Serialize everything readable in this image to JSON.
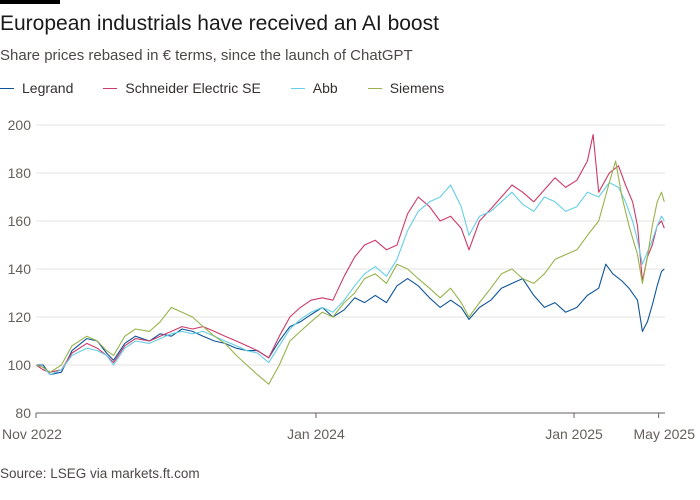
{
  "header": {
    "title": "European industrials have received an AI boost",
    "subtitle": "Share prices rebased in € terms, since the launch of ChatGPT"
  },
  "footer": {
    "source": "Source: LSEG via markets.ft.com"
  },
  "chart_data": {
    "type": "line",
    "title": "European industrials have received an AI boost",
    "subtitle": "Share prices rebased in € terms, since the launch of ChatGPT",
    "xlabel": "",
    "ylabel": "",
    "ylim": [
      80,
      200
    ],
    "yticks": [
      80,
      100,
      120,
      140,
      160,
      180,
      200
    ],
    "xlim": [
      "2022-11-30",
      "2025-05-10"
    ],
    "xticks": [
      {
        "date": "2022-11-30",
        "label": "Nov 2022"
      },
      {
        "date": "2024-01-01",
        "label": "Jan 2024"
      },
      {
        "date": "2025-01-01",
        "label": "Jan 2025"
      },
      {
        "date": "2025-05-01",
        "label": "May 2025"
      }
    ],
    "grid": true,
    "legend": "top-left",
    "series": [
      {
        "name": "Legrand",
        "color": "#0f5499",
        "points": [
          [
            "2022-11-30",
            100
          ],
          [
            "2022-12-10",
            100
          ],
          [
            "2022-12-20",
            96
          ],
          [
            "2023-01-05",
            97
          ],
          [
            "2023-01-20",
            106
          ],
          [
            "2023-02-10",
            111
          ],
          [
            "2023-02-25",
            110
          ],
          [
            "2023-03-10",
            105
          ],
          [
            "2023-03-20",
            102
          ],
          [
            "2023-04-05",
            109
          ],
          [
            "2023-04-20",
            112
          ],
          [
            "2023-05-10",
            110
          ],
          [
            "2023-05-25",
            113
          ],
          [
            "2023-06-10",
            112
          ],
          [
            "2023-06-25",
            115
          ],
          [
            "2023-07-10",
            114
          ],
          [
            "2023-07-25",
            112
          ],
          [
            "2023-08-10",
            110
          ],
          [
            "2023-08-25",
            109
          ],
          [
            "2023-09-10",
            107
          ],
          [
            "2023-09-25",
            106
          ],
          [
            "2023-10-10",
            106
          ],
          [
            "2023-10-26",
            103
          ],
          [
            "2023-11-10",
            110
          ],
          [
            "2023-11-25",
            116
          ],
          [
            "2023-12-10",
            118
          ],
          [
            "2023-12-25",
            121
          ],
          [
            "2024-01-10",
            124
          ],
          [
            "2024-01-25",
            120
          ],
          [
            "2024-02-10",
            123
          ],
          [
            "2024-02-25",
            128
          ],
          [
            "2024-03-10",
            126
          ],
          [
            "2024-03-25",
            129
          ],
          [
            "2024-04-10",
            126
          ],
          [
            "2024-04-25",
            133
          ],
          [
            "2024-05-10",
            136
          ],
          [
            "2024-05-25",
            133
          ],
          [
            "2024-06-10",
            128
          ],
          [
            "2024-06-25",
            124
          ],
          [
            "2024-07-10",
            127
          ],
          [
            "2024-07-25",
            124
          ],
          [
            "2024-08-05",
            119
          ],
          [
            "2024-08-20",
            124
          ],
          [
            "2024-09-05",
            127
          ],
          [
            "2024-09-20",
            132
          ],
          [
            "2024-10-05",
            134
          ],
          [
            "2024-10-20",
            136
          ],
          [
            "2024-11-05",
            129
          ],
          [
            "2024-11-20",
            124
          ],
          [
            "2024-12-05",
            126
          ],
          [
            "2024-12-20",
            122
          ],
          [
            "2025-01-05",
            124
          ],
          [
            "2025-01-20",
            129
          ],
          [
            "2025-02-05",
            132
          ],
          [
            "2025-02-15",
            142
          ],
          [
            "2025-02-25",
            138
          ],
          [
            "2025-03-10",
            135
          ],
          [
            "2025-03-20",
            132
          ],
          [
            "2025-04-01",
            127
          ],
          [
            "2025-04-08",
            114
          ],
          [
            "2025-04-15",
            118
          ],
          [
            "2025-04-22",
            125
          ],
          [
            "2025-04-29",
            133
          ],
          [
            "2025-05-05",
            139
          ],
          [
            "2025-05-09",
            140
          ]
        ]
      },
      {
        "name": "Schneider Electric SE",
        "color": "#cc3a68",
        "points": [
          [
            "2022-11-30",
            100
          ],
          [
            "2022-12-10",
            98
          ],
          [
            "2022-12-20",
            97
          ],
          [
            "2023-01-05",
            98
          ],
          [
            "2023-01-20",
            105
          ],
          [
            "2023-02-10",
            109
          ],
          [
            "2023-02-25",
            107
          ],
          [
            "2023-03-10",
            104
          ],
          [
            "2023-03-20",
            101
          ],
          [
            "2023-04-05",
            108
          ],
          [
            "2023-04-20",
            111
          ],
          [
            "2023-05-10",
            110
          ],
          [
            "2023-05-25",
            112
          ],
          [
            "2023-06-10",
            114
          ],
          [
            "2023-06-25",
            116
          ],
          [
            "2023-07-10",
            115
          ],
          [
            "2023-07-25",
            116
          ],
          [
            "2023-08-10",
            114
          ],
          [
            "2023-08-25",
            112
          ],
          [
            "2023-09-10",
            110
          ],
          [
            "2023-09-25",
            108
          ],
          [
            "2023-10-10",
            106
          ],
          [
            "2023-10-26",
            103
          ],
          [
            "2023-11-10",
            112
          ],
          [
            "2023-11-25",
            120
          ],
          [
            "2023-12-10",
            124
          ],
          [
            "2023-12-25",
            127
          ],
          [
            "2024-01-10",
            128
          ],
          [
            "2024-01-25",
            127
          ],
          [
            "2024-02-10",
            137
          ],
          [
            "2024-02-25",
            145
          ],
          [
            "2024-03-10",
            150
          ],
          [
            "2024-03-25",
            152
          ],
          [
            "2024-04-10",
            148
          ],
          [
            "2024-04-25",
            150
          ],
          [
            "2024-05-10",
            163
          ],
          [
            "2024-05-25",
            170
          ],
          [
            "2024-06-10",
            166
          ],
          [
            "2024-06-25",
            160
          ],
          [
            "2024-07-10",
            162
          ],
          [
            "2024-07-25",
            157
          ],
          [
            "2024-08-05",
            148
          ],
          [
            "2024-08-20",
            160
          ],
          [
            "2024-09-05",
            165
          ],
          [
            "2024-09-20",
            170
          ],
          [
            "2024-10-05",
            175
          ],
          [
            "2024-10-20",
            172
          ],
          [
            "2024-11-05",
            168
          ],
          [
            "2024-11-20",
            173
          ],
          [
            "2024-12-05",
            178
          ],
          [
            "2024-12-20",
            174
          ],
          [
            "2025-01-05",
            177
          ],
          [
            "2025-01-20",
            185
          ],
          [
            "2025-01-28",
            196
          ],
          [
            "2025-02-05",
            172
          ],
          [
            "2025-02-20",
            180
          ],
          [
            "2025-03-05",
            183
          ],
          [
            "2025-03-15",
            175
          ],
          [
            "2025-03-25",
            168
          ],
          [
            "2025-04-01",
            158
          ],
          [
            "2025-04-08",
            135
          ],
          [
            "2025-04-15",
            145
          ],
          [
            "2025-04-22",
            150
          ],
          [
            "2025-04-29",
            158
          ],
          [
            "2025-05-05",
            160
          ],
          [
            "2025-05-09",
            157
          ]
        ]
      },
      {
        "name": "Abb",
        "color": "#66cfe6",
        "points": [
          [
            "2022-11-30",
            100
          ],
          [
            "2022-12-10",
            99
          ],
          [
            "2022-12-20",
            96
          ],
          [
            "2023-01-05",
            98
          ],
          [
            "2023-01-20",
            104
          ],
          [
            "2023-02-10",
            107
          ],
          [
            "2023-02-25",
            106
          ],
          [
            "2023-03-10",
            104
          ],
          [
            "2023-03-20",
            100
          ],
          [
            "2023-04-05",
            107
          ],
          [
            "2023-04-20",
            110
          ],
          [
            "2023-05-10",
            109
          ],
          [
            "2023-05-25",
            111
          ],
          [
            "2023-06-10",
            113
          ],
          [
            "2023-06-25",
            114
          ],
          [
            "2023-07-10",
            113
          ],
          [
            "2023-07-25",
            114
          ],
          [
            "2023-08-10",
            112
          ],
          [
            "2023-08-25",
            110
          ],
          [
            "2023-09-10",
            108
          ],
          [
            "2023-09-25",
            106
          ],
          [
            "2023-10-10",
            105
          ],
          [
            "2023-10-26",
            101
          ],
          [
            "2023-11-10",
            108
          ],
          [
            "2023-11-25",
            115
          ],
          [
            "2023-12-10",
            119
          ],
          [
            "2023-12-25",
            122
          ],
          [
            "2024-01-10",
            124
          ],
          [
            "2024-01-25",
            122
          ],
          [
            "2024-02-10",
            127
          ],
          [
            "2024-02-25",
            133
          ],
          [
            "2024-03-10",
            138
          ],
          [
            "2024-03-25",
            141
          ],
          [
            "2024-04-10",
            137
          ],
          [
            "2024-04-25",
            144
          ],
          [
            "2024-05-10",
            156
          ],
          [
            "2024-05-25",
            164
          ],
          [
            "2024-06-10",
            168
          ],
          [
            "2024-06-25",
            170
          ],
          [
            "2024-07-10",
            175
          ],
          [
            "2024-07-25",
            166
          ],
          [
            "2024-08-05",
            154
          ],
          [
            "2024-08-20",
            162
          ],
          [
            "2024-09-05",
            164
          ],
          [
            "2024-09-20",
            168
          ],
          [
            "2024-10-05",
            172
          ],
          [
            "2024-10-20",
            167
          ],
          [
            "2024-11-05",
            164
          ],
          [
            "2024-11-20",
            170
          ],
          [
            "2024-12-05",
            168
          ],
          [
            "2024-12-20",
            164
          ],
          [
            "2025-01-05",
            166
          ],
          [
            "2025-01-20",
            172
          ],
          [
            "2025-02-05",
            170
          ],
          [
            "2025-02-20",
            176
          ],
          [
            "2025-03-05",
            174
          ],
          [
            "2025-03-15",
            168
          ],
          [
            "2025-03-25",
            160
          ],
          [
            "2025-04-01",
            152
          ],
          [
            "2025-04-08",
            142
          ],
          [
            "2025-04-15",
            147
          ],
          [
            "2025-04-22",
            152
          ],
          [
            "2025-04-29",
            158
          ],
          [
            "2025-05-05",
            162
          ],
          [
            "2025-05-09",
            160
          ]
        ]
      },
      {
        "name": "Siemens",
        "color": "#96b34c",
        "points": [
          [
            "2022-11-30",
            100
          ],
          [
            "2022-12-10",
            99
          ],
          [
            "2022-12-20",
            97
          ],
          [
            "2023-01-05",
            100
          ],
          [
            "2023-01-20",
            108
          ],
          [
            "2023-02-10",
            112
          ],
          [
            "2023-02-25",
            110
          ],
          [
            "2023-03-10",
            106
          ],
          [
            "2023-03-20",
            104
          ],
          [
            "2023-04-05",
            112
          ],
          [
            "2023-04-20",
            115
          ],
          [
            "2023-05-10",
            114
          ],
          [
            "2023-05-25",
            118
          ],
          [
            "2023-06-10",
            124
          ],
          [
            "2023-06-25",
            122
          ],
          [
            "2023-07-10",
            120
          ],
          [
            "2023-07-25",
            116
          ],
          [
            "2023-08-10",
            112
          ],
          [
            "2023-08-25",
            109
          ],
          [
            "2023-09-10",
            104
          ],
          [
            "2023-09-25",
            100
          ],
          [
            "2023-10-10",
            96
          ],
          [
            "2023-10-26",
            92
          ],
          [
            "2023-11-10",
            100
          ],
          [
            "2023-11-25",
            110
          ],
          [
            "2023-12-10",
            114
          ],
          [
            "2023-12-25",
            118
          ],
          [
            "2024-01-10",
            122
          ],
          [
            "2024-01-25",
            120
          ],
          [
            "2024-02-10",
            126
          ],
          [
            "2024-02-25",
            130
          ],
          [
            "2024-03-10",
            136
          ],
          [
            "2024-03-25",
            138
          ],
          [
            "2024-04-10",
            134
          ],
          [
            "2024-04-25",
            142
          ],
          [
            "2024-05-10",
            140
          ],
          [
            "2024-05-25",
            136
          ],
          [
            "2024-06-10",
            132
          ],
          [
            "2024-06-25",
            128
          ],
          [
            "2024-07-10",
            132
          ],
          [
            "2024-07-25",
            126
          ],
          [
            "2024-08-05",
            120
          ],
          [
            "2024-08-20",
            126
          ],
          [
            "2024-09-05",
            132
          ],
          [
            "2024-09-20",
            138
          ],
          [
            "2024-10-05",
            140
          ],
          [
            "2024-10-20",
            136
          ],
          [
            "2024-11-05",
            134
          ],
          [
            "2024-11-20",
            138
          ],
          [
            "2024-12-05",
            144
          ],
          [
            "2024-12-20",
            146
          ],
          [
            "2025-01-05",
            148
          ],
          [
            "2025-01-20",
            154
          ],
          [
            "2025-02-05",
            160
          ],
          [
            "2025-02-20",
            176
          ],
          [
            "2025-03-01",
            185
          ],
          [
            "2025-03-10",
            170
          ],
          [
            "2025-03-20",
            158
          ],
          [
            "2025-04-01",
            146
          ],
          [
            "2025-04-08",
            134
          ],
          [
            "2025-04-15",
            145
          ],
          [
            "2025-04-22",
            158
          ],
          [
            "2025-04-29",
            168
          ],
          [
            "2025-05-05",
            172
          ],
          [
            "2025-05-09",
            168
          ]
        ]
      }
    ]
  }
}
